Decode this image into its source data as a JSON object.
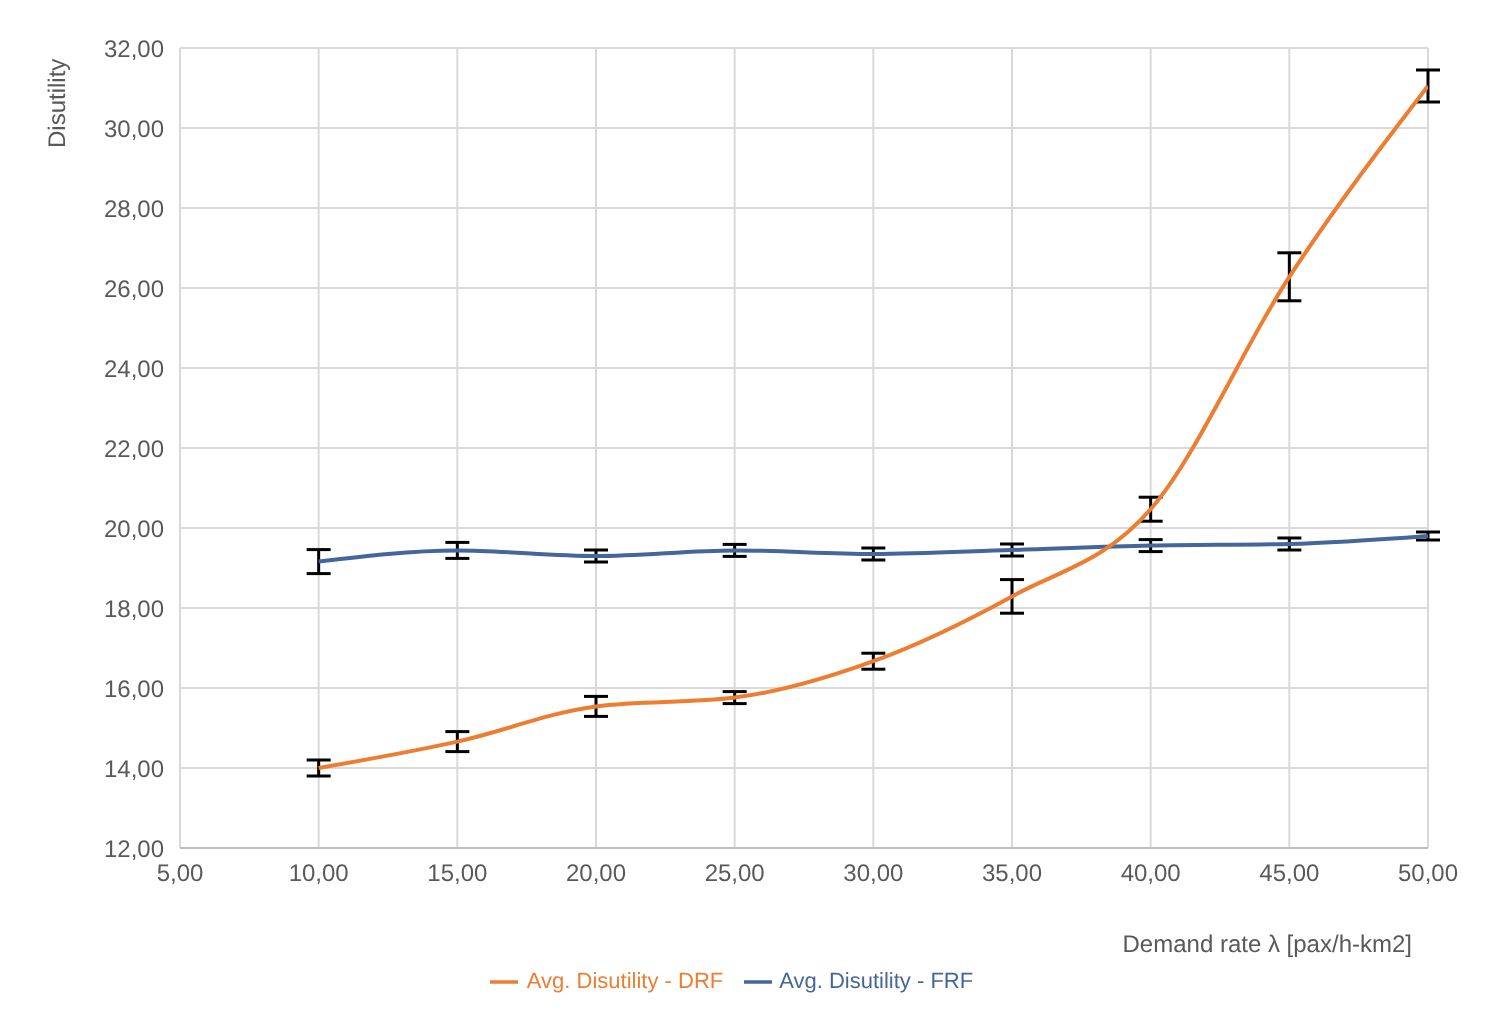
{
  "chart_data": {
    "type": "line",
    "xlabel": "Demand rate λ [pax/h-km2]",
    "ylabel": "Disutility",
    "x": [
      10,
      15,
      20,
      25,
      30,
      35,
      40,
      45,
      50
    ],
    "series": [
      {
        "name": "Avg. Disutility - FRF",
        "color": "#44679b",
        "values": [
          19.16,
          19.44,
          19.3,
          19.44,
          19.35,
          19.45,
          19.56,
          19.6,
          19.8
        ],
        "errors": [
          0.3,
          0.2,
          0.15,
          0.15,
          0.15,
          0.15,
          0.15,
          0.15,
          0.1
        ]
      },
      {
        "name": "Avg. Disutility - DRF",
        "color": "#ed7d31",
        "values": [
          14.0,
          14.66,
          15.54,
          15.76,
          16.67,
          18.29,
          20.47,
          26.28,
          31.05
        ],
        "errors": [
          0.2,
          0.25,
          0.25,
          0.15,
          0.2,
          0.42,
          0.3,
          0.6,
          0.4
        ]
      }
    ],
    "xlim": [
      5,
      50
    ],
    "xticks": [
      {
        "value": 5,
        "label": "5,00"
      },
      {
        "value": 10,
        "label": "10,00"
      },
      {
        "value": 15,
        "label": "15,00"
      },
      {
        "value": 20,
        "label": "20,00"
      },
      {
        "value": 25,
        "label": "25,00"
      },
      {
        "value": 30,
        "label": "30,00"
      },
      {
        "value": 35,
        "label": "35,00"
      },
      {
        "value": 40,
        "label": "40,00"
      },
      {
        "value": 45,
        "label": "45,00"
      },
      {
        "value": 50,
        "label": "50,00"
      }
    ],
    "ylim": [
      12,
      32
    ],
    "yticks": [
      {
        "value": 12,
        "label": "12,00"
      },
      {
        "value": 14,
        "label": "14,00"
      },
      {
        "value": 16,
        "label": "16,00"
      },
      {
        "value": 18,
        "label": "18,00"
      },
      {
        "value": 20,
        "label": "20,00"
      },
      {
        "value": 22,
        "label": "22,00"
      },
      {
        "value": 24,
        "label": "24,00"
      },
      {
        "value": 26,
        "label": "26,00"
      },
      {
        "value": 28,
        "label": "28,00"
      },
      {
        "value": 30,
        "label": "30,00"
      },
      {
        "value": 32,
        "label": "32,00"
      }
    ],
    "grid": true,
    "legend": "bottom",
    "marker": "none",
    "line_style": "solid"
  }
}
